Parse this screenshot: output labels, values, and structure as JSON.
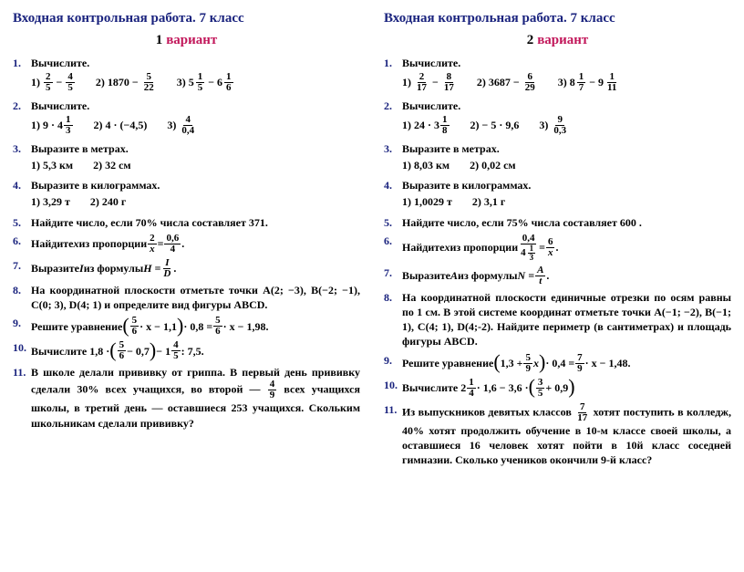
{
  "title": "Входная контрольная работа. 7 класс",
  "variant_word": "вариант",
  "v1": {
    "num": "1",
    "r1": {
      "idx": "1.",
      "prompt": "Вычислите.",
      "a": [
        "1)",
        "2",
        "5",
        "−",
        "4",
        "5"
      ],
      "b": [
        "2) 1870 −",
        "5",
        "22"
      ],
      "c": [
        "3)",
        "5",
        "1",
        "5",
        "−",
        "6",
        "1",
        "6"
      ]
    },
    "r2": {
      "idx": "2.",
      "prompt": "Вычислите.",
      "a": [
        "1) 9 · 4",
        "1",
        "3"
      ],
      "b": "2) 4 · (−4,5)",
      "c": [
        "3)",
        "4",
        "0,4"
      ]
    },
    "r3": {
      "idx": "3.",
      "prompt": "Выразите в метрах.",
      "a": "1) 5,3 км",
      "b": "2) 32 см"
    },
    "r4": {
      "idx": "4.",
      "prompt": "Выразите в килограммах.",
      "a": "1) 3,29 т",
      "b": "2) 240 г"
    },
    "r5": {
      "idx": "5.",
      "text": "Найдите число, если 70% числа составляет 371."
    },
    "r6": {
      "idx": "6.",
      "pre": "Найдите ",
      "x": "x",
      "mid": " из пропорции ",
      "l": [
        "2",
        "x"
      ],
      "eq": " = ",
      "r": [
        "0,6",
        "4"
      ],
      "dot": "."
    },
    "r7": {
      "idx": "7.",
      "pre": "Выразите ",
      "v": "I",
      "mid": " из формулы ",
      "lhs": "H = ",
      "f": [
        "I",
        "D"
      ],
      "dot": "."
    },
    "r8": {
      "idx": "8.",
      "text": "На координатной плоскости отметьте точки A(2; −3), B(−2; −1), C(0; 3), D(4; 1) и определите вид фигуры ABCD."
    },
    "r9": {
      "idx": "9.",
      "pre": "Решите уравнение ",
      "f1": [
        "5",
        "6"
      ],
      "mid1": " · x − 1,1",
      "mid2": " · 0,8 = ",
      "f2": [
        "5",
        "6"
      ],
      "mid3": " · x − 1,98."
    },
    "r10": {
      "idx": "10.",
      "pre": "Вычислите 1,8 · ",
      "f1": [
        "5",
        "6"
      ],
      "mid1": " − 0,7",
      "mid2": " − 1",
      "f2": [
        "4",
        "5"
      ],
      "tail": " : 7,5."
    },
    "r11": {
      "idx": "11.",
      "p1": "В школе делали прививку от гриппа. В первый день прививку сделали 30% всех учащихся, во второй — ",
      "f": [
        "4",
        "9"
      ],
      "p2": " всех учащихся школы, в третий день — оставшиеся 253 учащихся. Скольким школьникам сделали при­вивку?"
    }
  },
  "v2": {
    "num": "2",
    "r1": {
      "idx": "1.",
      "prompt": "Вычислите.",
      "a": [
        "1)",
        "2",
        "17",
        "−",
        "8",
        "17"
      ],
      "b": [
        "2) 3687 −",
        "6",
        "29"
      ],
      "c": [
        "3)",
        "8",
        "1",
        "7",
        "−",
        "9",
        "1",
        "11"
      ]
    },
    "r2": {
      "idx": "2.",
      "prompt": "Вычислите.",
      "a": [
        "1) 24 · 3",
        "1",
        "8"
      ],
      "b": "2) − 5 · 9,6",
      "c": [
        "3)",
        "9",
        "0,3"
      ]
    },
    "r3": {
      "idx": "3.",
      "prompt": "Выразите в метрах.",
      "a": "1) 8,03 км",
      "b": "2) 0,02 см"
    },
    "r4": {
      "idx": "4.",
      "prompt": "Выразите в килограммах.",
      "a": "1) 1,0029 т",
      "b": "2) 3,1 г"
    },
    "r5": {
      "idx": "5.",
      "text": "Найдите число, если 75% числа составляет 600 ."
    },
    "r6": {
      "idx": "6.",
      "pre": "Найдите ",
      "x": "x",
      "mid": " из пропорции ",
      "ln": "0,4",
      "ld": [
        "4",
        "1",
        "3"
      ],
      "eq": " = ",
      "r": [
        "6",
        "x"
      ],
      "dot": " ."
    },
    "r7": {
      "idx": "7.",
      "pre": "Выразите ",
      "v": "A",
      "mid": " из формулы  ",
      "lhs": "N = ",
      "f": [
        "A",
        "t"
      ],
      "dot": " ."
    },
    "r8": {
      "idx": "8.",
      "text": "На координатной плоскости единичные отрезки по осям равны по 1 см. В этой системе координат отметь­те точки A(−1; −2), B(−1; 1), C(4; 1), D(4;-2). Найдите периметр (в сантиметрах) и площадь фигуры ABCD."
    },
    "r9": {
      "idx": "9.",
      "pre": "Решите уравнение ",
      "p1": "1,3 + ",
      "f1": [
        "5",
        "9"
      ],
      "mid1": " x",
      "mid2": " · 0,4 = ",
      "f2": [
        "7",
        "9"
      ],
      "mid3": " · x − 1,48."
    },
    "r10": {
      "idx": "10.",
      "pre": "Вычислите   2",
      "f0": [
        "1",
        "4"
      ],
      "mid0": " · 1,6 − 3,6 · ",
      "f1": [
        "3",
        "5"
      ],
      "mid1": " + 0,9"
    },
    "r11": {
      "idx": "11.",
      "p1": "Из выпускников девятых классов ",
      "f": [
        "7",
        "17"
      ],
      "p2": " хотят поступить в колледж, 40% хотят продолжить обучение в 10-м классе своей школы, а оставшиеся 16 человек хотят пойти в 10й класс соседней гимназии. Сколько учеников окончили 9-й класс?"
    }
  }
}
